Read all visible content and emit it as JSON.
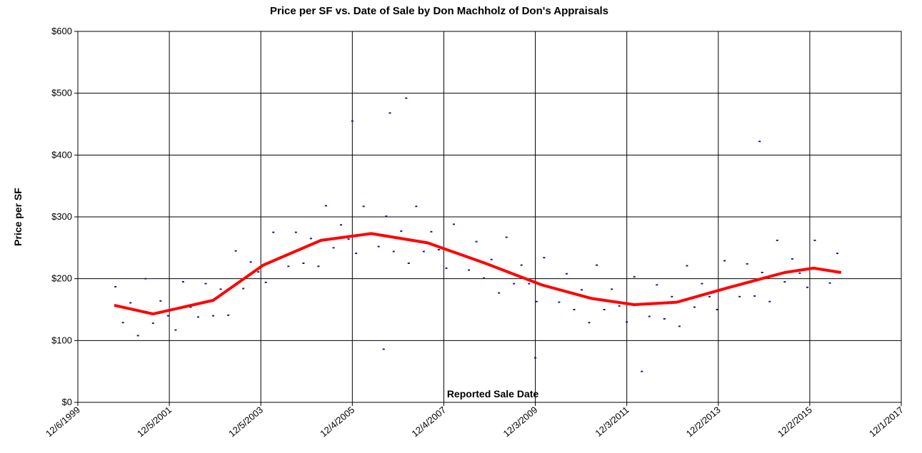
{
  "chart_data": {
    "type": "scatter",
    "title": "Price per SF vs. Date of Sale by Don Machholz of Don's Appraisals",
    "x_label": "Reported Sale Date",
    "y_label": "Price per SF",
    "xlim": [
      36500,
      43070
    ],
    "xticks": [
      {
        "value": 36500,
        "label": "12/6/1999"
      },
      {
        "value": 37230,
        "label": "12/5/2001"
      },
      {
        "value": 37960,
        "label": "12/5/2003"
      },
      {
        "value": 38690,
        "label": "12/4/2005"
      },
      {
        "value": 39420,
        "label": "12/4/2007"
      },
      {
        "value": 40150,
        "label": "12/3/2009"
      },
      {
        "value": 40880,
        "label": "12/3/2011"
      },
      {
        "value": 41610,
        "label": "12/2/2013"
      },
      {
        "value": 42340,
        "label": "12/2/2015"
      },
      {
        "value": 43070,
        "label": "12/1/2017"
      }
    ],
    "ylim": [
      0,
      600
    ],
    "yticks": [
      {
        "value": 0,
        "label": "$0"
      },
      {
        "value": 100,
        "label": "$100"
      },
      {
        "value": 200,
        "label": "$200"
      },
      {
        "value": 300,
        "label": "$300"
      },
      {
        "value": 400,
        "label": "$400"
      },
      {
        "value": 500,
        "label": "$500"
      },
      {
        "value": 600,
        "label": "$600"
      }
    ],
    "grid": true,
    "series": [
      {
        "mark": "dot",
        "color": "#1a1a80",
        "x": [
          36800,
          36860,
          36920,
          36980,
          37040,
          37100,
          37160,
          37220,
          37280,
          37340,
          37400,
          37460,
          37520,
          37580,
          37640,
          37700,
          37760,
          37820,
          37880,
          37940,
          38000,
          38060,
          38120,
          38180,
          38240,
          38300,
          38360,
          38420,
          38480,
          38540,
          38600,
          38660,
          38720,
          38780,
          38840,
          38900,
          38960,
          39020,
          39080,
          39140,
          39200,
          39260,
          39320,
          39380,
          39440,
          39500,
          39560,
          39620,
          39680,
          39740,
          39800,
          39860,
          39920,
          39980,
          40040,
          40100,
          40160,
          40220,
          40280,
          40340,
          40400,
          40460,
          40520,
          40580,
          40640,
          40700,
          40760,
          40820,
          40880,
          40940,
          41000,
          41060,
          41120,
          41180,
          41240,
          41300,
          41360,
          41420,
          41480,
          41540,
          41600,
          41660,
          41720,
          41780,
          41840,
          41900,
          41960,
          42020,
          42080,
          42140,
          42200,
          42260,
          42320,
          42380,
          42440,
          42500,
          42560,
          38690,
          38990,
          39120,
          38940,
          41000,
          41940,
          40150
        ],
        "values": [
          187,
          129,
          161,
          108,
          200,
          128,
          164,
          140,
          117,
          195,
          154,
          138,
          192,
          140,
          183,
          141,
          245,
          184,
          227,
          211,
          194,
          275,
          235,
          220,
          275,
          225,
          265,
          220,
          318,
          250,
          287,
          264,
          241,
          317,
          273,
          252,
          301,
          244,
          277,
          225,
          317,
          244,
          276,
          247,
          217,
          288,
          239,
          214,
          260,
          201,
          231,
          177,
          267,
          192,
          222,
          192,
          163,
          234,
          186,
          162,
          208,
          150,
          182,
          129,
          222,
          150,
          183,
          156,
          130,
          203,
          158,
          139,
          190,
          135,
          171,
          123,
          221,
          154,
          192,
          171,
          150,
          229,
          187,
          171,
          224,
          172,
          210,
          163,
          262,
          195,
          232,
          209,
          186,
          262,
          215,
          193,
          241,
          455,
          468,
          492,
          86,
          50,
          422,
          72
        ]
      },
      {
        "mark": "line",
        "color": "#ff0000",
        "x": [
          36790,
          37100,
          37580,
          37980,
          38440,
          38840,
          39290,
          39750,
          40200,
          40600,
          40940,
          41280,
          41680,
          42140,
          42370,
          42590
        ],
        "values": [
          157,
          143,
          165,
          222,
          262,
          273,
          258,
          225,
          190,
          168,
          158,
          162,
          185,
          210,
          217,
          210
        ]
      }
    ]
  }
}
